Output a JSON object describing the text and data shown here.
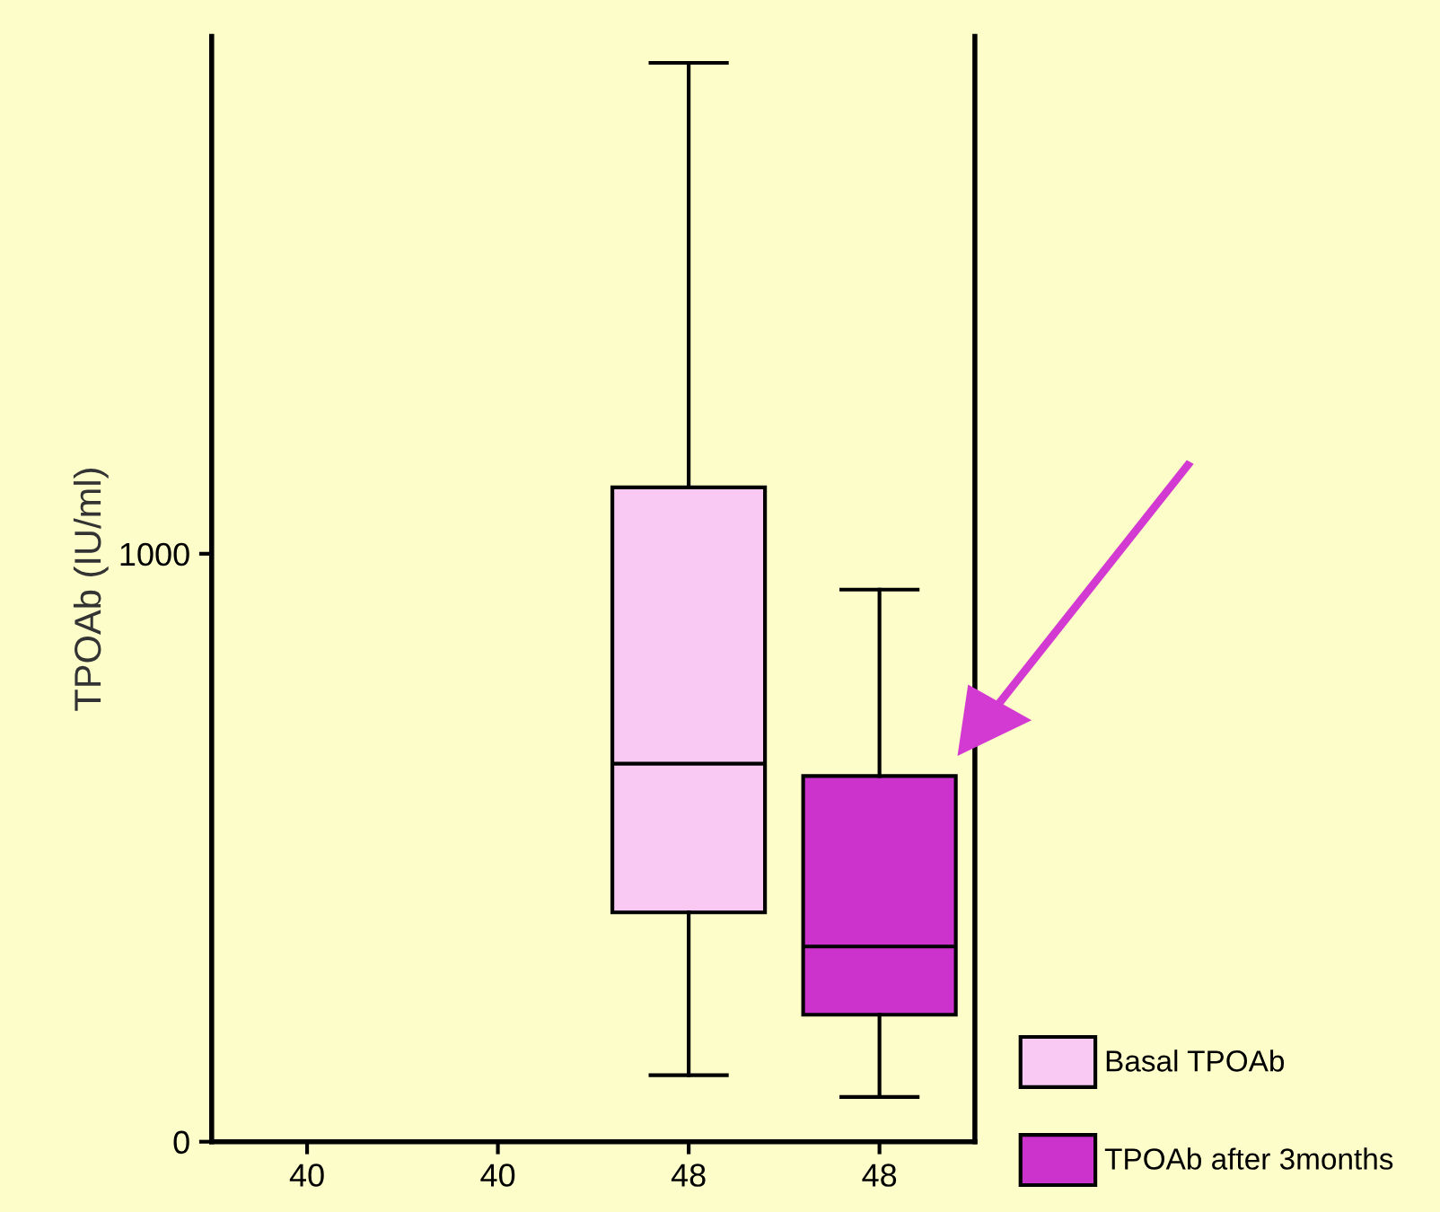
{
  "chart_data": {
    "type": "box",
    "ylabel": "TPOAb (IU/ml)",
    "categories": [
      "40",
      "40",
      "48",
      "48"
    ],
    "ylim": [
      0,
      1880
    ],
    "yticks": [
      0,
      1000
    ],
    "grid": false,
    "legend": "bottom right",
    "series": [
      {
        "name": "Basal TPOAb",
        "color": "#f9c8f3",
        "boxes": [
          null,
          null,
          {
            "low": 113,
            "q1": 390,
            "median": 643,
            "q3": 1113,
            "high": 1835
          },
          null
        ]
      },
      {
        "name": "TPOAb after 3months",
        "color": "#cc33cc",
        "boxes": [
          null,
          null,
          null,
          {
            "low": 76,
            "q1": 216,
            "median": 332,
            "q3": 622,
            "high": 939
          }
        ]
      }
    ]
  }
}
